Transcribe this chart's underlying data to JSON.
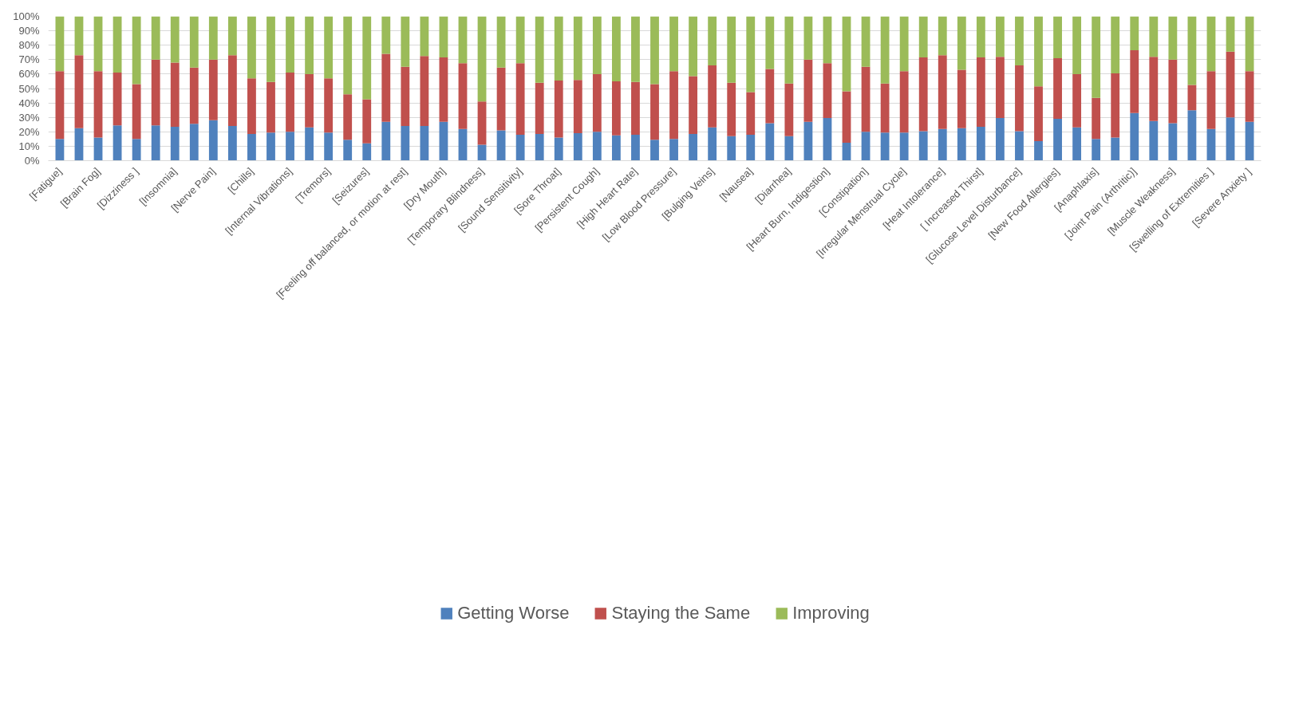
{
  "chart_data": {
    "type": "bar",
    "stacked": true,
    "categories": [
      "[Fatigue]",
      null,
      "[Brain Fog]",
      null,
      "[Dizziness ]",
      null,
      "[Insomnia]",
      null,
      "[Nerve Pain]",
      null,
      "[Chills]",
      null,
      "[Internal Vibrations]",
      null,
      "[Tremors]",
      null,
      "[Seizures]",
      null,
      "[Feeling off balanced, or motion at rest]",
      null,
      "[Dry Mouth]",
      null,
      "[Temporary Blindness]",
      null,
      "[Sound Sensitivity]",
      null,
      "[Sore Throat]",
      null,
      "[Persistent Cough]",
      null,
      "[High Heart Rate]",
      null,
      "[Low Blood Pressure]",
      null,
      "[Bulging Veins]",
      null,
      "[Nausea]",
      null,
      "[Diarrhea]",
      null,
      "[Heart Burn, Indigestion]",
      null,
      "[Constipation]",
      null,
      "[Irregular Menstrual Cycle]",
      null,
      "[Heat Intolerance]",
      null,
      "[ Increased Thirst]",
      null,
      "[Glucose Level Disturbance]",
      null,
      "[New Food Allergies]",
      null,
      "[Anaphlaxis]",
      null,
      "[Joint Pain (Arthritic)]",
      null,
      "[Muscle Weakness]",
      null,
      "[Swelling of Extremities ]",
      null,
      "[Severe Anxiety ]"
    ],
    "series": [
      {
        "name": "Getting Worse",
        "color": "#4f81bd",
        "values": [
          15,
          22.5,
          16,
          24.5,
          15,
          24.5,
          23.5,
          25.5,
          28,
          24,
          18.5,
          19.5,
          20,
          23,
          19.5,
          14.5,
          12,
          27,
          24,
          24,
          27,
          22,
          11,
          21,
          18,
          18.5,
          16,
          19,
          20,
          17.5,
          18,
          14.5,
          15,
          18.5,
          23,
          17,
          18,
          26,
          17,
          27,
          29.5,
          12.5,
          20,
          19.5,
          19.5,
          20.5,
          22,
          22.5,
          23.5,
          29.5,
          20.5,
          13.5,
          29,
          23,
          15,
          16,
          33,
          27.5,
          26,
          35,
          22,
          30,
          27
        ]
      },
      {
        "name": "Staying the Same",
        "color": "#c0504d",
        "values": [
          47,
          50.5,
          46,
          36.5,
          38,
          45.5,
          44.5,
          39,
          42,
          49,
          38.5,
          35,
          41,
          37,
          37.5,
          31.5,
          30.5,
          47,
          41,
          48.5,
          44.5,
          45.5,
          30,
          43.5,
          49.5,
          35.5,
          39.5,
          37,
          40,
          37.5,
          36.5,
          38.5,
          47,
          40,
          43,
          37,
          29.5,
          37.5,
          36.5,
          43,
          38,
          35.5,
          45,
          34,
          42.5,
          51,
          51,
          40.5,
          48,
          42.5,
          45.5,
          38,
          42,
          37,
          28.5,
          44.5,
          43.5,
          44.5,
          44,
          17.5,
          40,
          45.5,
          35
        ]
      },
      {
        "name": "Improving",
        "color": "#9bbb59",
        "values": [
          38,
          27,
          38,
          39,
          47,
          30,
          32,
          35.5,
          30,
          27,
          43,
          45.5,
          39,
          40,
          43,
          54,
          57.5,
          26,
          35,
          27.5,
          28.5,
          32.5,
          59,
          35.5,
          32.5,
          46,
          44.5,
          44,
          40,
          45,
          45.5,
          47,
          38,
          41.5,
          34,
          46,
          52.5,
          36.5,
          46.5,
          30,
          32.5,
          52,
          35,
          46.5,
          38,
          28.5,
          27,
          37,
          28.5,
          28,
          34,
          48.5,
          29,
          40,
          56.5,
          39.5,
          23.5,
          28,
          30,
          47.5,
          38,
          24.5,
          38
        ]
      }
    ],
    "ylim": [
      0,
      100
    ],
    "yticks": [
      {
        "value": 0,
        "label": "0%"
      },
      {
        "value": 10,
        "label": "10%"
      },
      {
        "value": 20,
        "label": "20%"
      },
      {
        "value": 30,
        "label": "30%"
      },
      {
        "value": 40,
        "label": "40%"
      },
      {
        "value": 50,
        "label": "50%"
      },
      {
        "value": 60,
        "label": "60%"
      },
      {
        "value": 70,
        "label": "70%"
      },
      {
        "value": 80,
        "label": "80%"
      },
      {
        "value": 90,
        "label": "90%"
      },
      {
        "value": 100,
        "label": "100%"
      }
    ],
    "grid": "y",
    "legend": "bottom"
  }
}
